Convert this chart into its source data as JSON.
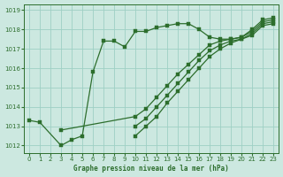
{
  "background_color": "#cce8e0",
  "grid_color": "#9ecfc4",
  "line_color": "#2d6e2d",
  "xlabel": "Graphe pression niveau de la mer (hPa)",
  "ylim": [
    1011.6,
    1019.3
  ],
  "xlim": [
    -0.5,
    23.5
  ],
  "yticks": [
    1012,
    1013,
    1014,
    1015,
    1016,
    1017,
    1018,
    1019
  ],
  "xticks": [
    0,
    1,
    2,
    3,
    4,
    5,
    6,
    7,
    8,
    9,
    10,
    11,
    12,
    13,
    14,
    15,
    16,
    17,
    18,
    19,
    20,
    21,
    22,
    23
  ],
  "series": [
    {
      "x": [
        0,
        1,
        3,
        4,
        5,
        6,
        7,
        8,
        9,
        10,
        11,
        12,
        13,
        14,
        15,
        16,
        17,
        18,
        19,
        20,
        21,
        22,
        23
      ],
      "y": [
        1013.3,
        1013.2,
        1012.0,
        1012.3,
        1012.5,
        1015.8,
        1017.4,
        1017.4,
        1017.1,
        1017.9,
        1017.9,
        1018.1,
        1018.2,
        1018.3,
        1018.3,
        1018.0,
        1017.6,
        1017.5,
        1017.5,
        1017.6,
        1018.0,
        1018.5,
        1018.6
      ]
    },
    {
      "x": [
        3,
        10,
        11,
        12,
        13,
        14,
        15,
        16,
        17,
        18,
        19,
        20,
        21,
        22,
        23
      ],
      "y": [
        1012.8,
        1013.5,
        1013.9,
        1014.5,
        1015.1,
        1015.7,
        1016.2,
        1016.7,
        1017.2,
        1017.4,
        1017.5,
        1017.6,
        1017.9,
        1018.4,
        1018.5
      ]
    },
    {
      "x": [
        10,
        11,
        12,
        13,
        14,
        15,
        16,
        17,
        18,
        19,
        20,
        21,
        22,
        23
      ],
      "y": [
        1013.0,
        1013.4,
        1014.0,
        1014.6,
        1015.2,
        1015.8,
        1016.4,
        1016.9,
        1017.2,
        1017.4,
        1017.5,
        1017.8,
        1018.3,
        1018.4
      ]
    },
    {
      "x": [
        10,
        11,
        12,
        13,
        14,
        15,
        16,
        17,
        18,
        19,
        20,
        21,
        22,
        23
      ],
      "y": [
        1012.5,
        1013.0,
        1013.5,
        1014.2,
        1014.8,
        1015.4,
        1016.0,
        1016.6,
        1017.0,
        1017.3,
        1017.5,
        1017.7,
        1018.2,
        1018.3
      ]
    }
  ]
}
